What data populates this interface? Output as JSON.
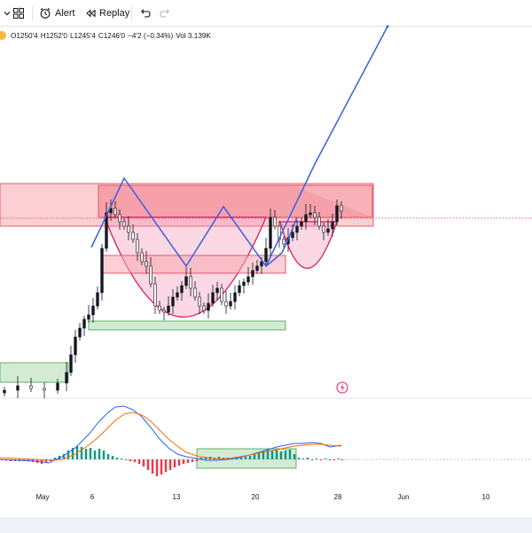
{
  "toolbar": {
    "alert_label": "Alert",
    "replay_label": "Replay",
    "icons": [
      "chevron-down-icon",
      "layout-grid-icon",
      "alert-clock-icon",
      "replay-icon",
      "undo-icon",
      "redo-icon"
    ]
  },
  "legend": {
    "open": "O1250'4",
    "high": "H1252'0",
    "low": "L1245'4",
    "close": "C1246'0",
    "change": "−4'2 (−0.34%)",
    "volume": "Vol 3.139K"
  },
  "colors": {
    "up": "#089981",
    "down": "#f23645",
    "fast_line": "#2962ff",
    "slow_line": "#ff6d00",
    "resistance_zone": "#f7a7b0",
    "support_zone": "#c8e6c9",
    "drawing_line": "#3760e0",
    "cup_arc": "#d81b60",
    "legend_dot": "#f5b93d"
  },
  "xaxis": {
    "labels": [
      "May",
      "6",
      "13",
      "20",
      "28",
      "Jun",
      "10"
    ]
  }
}
